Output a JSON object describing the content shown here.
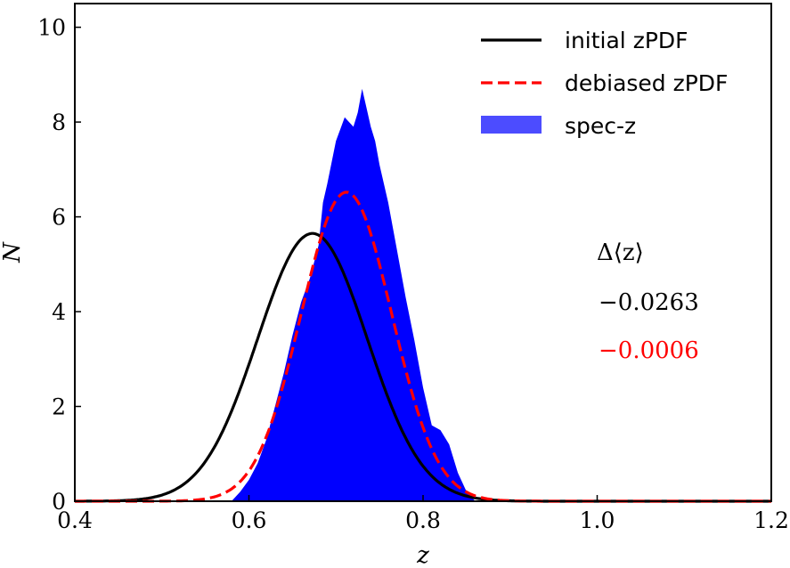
{
  "chart_data": {
    "type": "line",
    "title": "",
    "xlabel": "z",
    "ylabel": "N",
    "xlim": [
      0.4,
      1.2
    ],
    "ylim": [
      0,
      10.5
    ],
    "xticks": [
      0.4,
      0.6,
      0.8,
      1.0,
      1.2
    ],
    "xtick_labels": [
      "0.4",
      "0.6",
      "0.8",
      "1.0",
      "1.2"
    ],
    "yticks": [
      0,
      2,
      4,
      6,
      8,
      10
    ],
    "ytick_labels": [
      "0",
      "2",
      "4",
      "6",
      "8",
      "10"
    ],
    "grid": false,
    "legend_position": "top-right",
    "series": [
      {
        "name": "initial zPDF",
        "kind": "gaussian-line",
        "style": "solid",
        "color": "#000000",
        "mean": 0.673,
        "sigma": 0.063,
        "peak": 5.65
      },
      {
        "name": "debiased zPDF",
        "kind": "gaussian-line",
        "style": "dashed",
        "color": "#ff0000",
        "mean": 0.712,
        "sigma": 0.052,
        "peak": 6.52
      },
      {
        "name": "spec-z",
        "kind": "histogram",
        "color": "#0000ff",
        "x": [
          0.58,
          0.59,
          0.6,
          0.61,
          0.62,
          0.63,
          0.64,
          0.65,
          0.66,
          0.67,
          0.68,
          0.685,
          0.69,
          0.7,
          0.71,
          0.72,
          0.725,
          0.73,
          0.735,
          0.74,
          0.745,
          0.75,
          0.76,
          0.77,
          0.78,
          0.79,
          0.8,
          0.81,
          0.82,
          0.83,
          0.84,
          0.85,
          0.86
        ],
        "y": [
          0.0,
          0.2,
          0.45,
          0.8,
          1.3,
          2.0,
          2.7,
          3.5,
          4.2,
          4.7,
          5.4,
          6.3,
          6.7,
          7.6,
          8.1,
          7.9,
          8.2,
          8.7,
          8.3,
          7.9,
          7.6,
          7.1,
          6.3,
          5.3,
          4.3,
          3.4,
          2.4,
          1.6,
          1.5,
          1.2,
          0.6,
          0.2,
          0.0
        ]
      }
    ],
    "annotations": {
      "delta_label": "Δ⟨z⟩",
      "delta_initial": "−0.0263",
      "delta_debiased": "−0.0006",
      "delta_initial_color": "#000000",
      "delta_debiased_color": "#ff0000"
    }
  }
}
